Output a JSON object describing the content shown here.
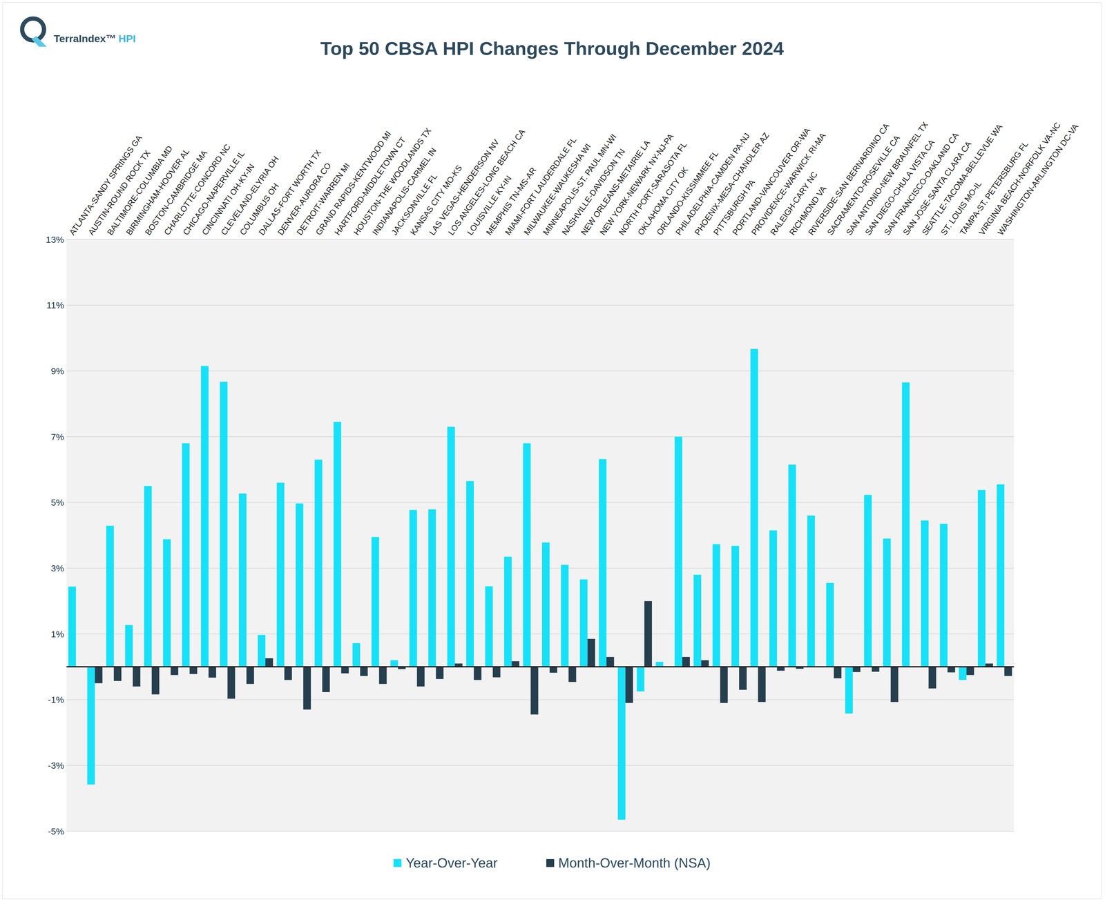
{
  "chart_data": {
    "type": "bar",
    "title": "Top 50 CBSA HPI Changes Through December 2024",
    "logo": [
      "TerraIndex™",
      "HPI"
    ],
    "categories": [
      "ATLANTA-SANDY SPRINGS GA",
      "AUSTIN-ROUND ROCK TX",
      "BALTIMORE-COLUMBIA MD",
      "BIRMINGHAM-HOOVER AL",
      "BOSTON-CAMBRIDGE MA",
      "CHARLOTTE-CONCORD NC",
      "CHICAGO-NAPERVILLE IL",
      "CINCINNATI OH-KY-IN",
      "CLEVELAND-ELYRIA OH",
      "COLUMBUS OH",
      "DALLAS-FORT WORTH TX",
      "DENVER-AURORA CO",
      "DETROIT-WARREN MI",
      "GRAND RAPIDS-KENTWOOD MI",
      "HARTFORD-MIDDLETOWN CT",
      "HOUSTON-THE WOODLANDS TX",
      "INDIANAPOLIS-CARMEL IN",
      "JACKSONVILLE FL",
      "KANSAS CITY MO-KS",
      "LAS VEGAS-HENDERSON NV",
      "LOS ANGELES-LONG BEACH CA",
      "LOUISVILLE KY-IN",
      "MEMPHIS TN-MS-AR",
      "MIAMI-FORT LAUDERDALE FL",
      "MILWAUKEE-WAUKESHA WI",
      "MINNEAPOLIS-ST. PAUL MN-WI",
      "NASHVILLE-DAVIDSON TN",
      "NEW ORLEANS-METAIRIE LA",
      "NEW YORK-NEWARK NY-NJ-PA",
      "NORTH PORT-SARASOTA FL",
      "OKLAHOMA CITY OK",
      "ORLANDO-KISSIMMEE FL",
      "PHILADELPHIA-CAMDEN PA-NJ",
      "PHOENIX-MESA-CHANDLER AZ",
      "PITTSBURGH PA",
      "PORTLAND-VANCOUVER OR-WA",
      "PROVIDENCE-WARWICK RI-MA",
      "RALEIGH-CARY NC",
      "RICHMOND VA",
      "RIVERSIDE-SAN BERNARDINO CA",
      "SACRAMENTO-ROSEVILLE CA",
      "SAN ANTONIO-NEW BRAUNFEL TX",
      "SAN DIEGO-CHULA VISTA CA",
      "SAN FRANCISCO-OAKLAND CA",
      "SAN JOSE-SANTA CLARA CA",
      "SEATTLE-TACOMA-BELLEVUE WA",
      "ST. LOUIS MO-IL",
      "TAMPA-ST. PETERSBURG FL",
      "VIRGINIA BEACH-NORFOLK VA-NC",
      "WASHINGTON-ARLINGTON DC-VA"
    ],
    "series": [
      {
        "name": "Year-Over-Year",
        "color": "#17E1F7",
        "values": [
          2.44,
          -3.58,
          4.29,
          1.27,
          5.5,
          3.88,
          6.8,
          9.15,
          8.67,
          5.27,
          0.97,
          5.6,
          4.97,
          6.3,
          7.45,
          0.72,
          3.95,
          0.2,
          4.77,
          4.79,
          7.3,
          5.65,
          2.45,
          3.35,
          6.8,
          3.78,
          3.1,
          2.66,
          6.32,
          -4.65,
          -0.75,
          0.15,
          7.0,
          2.8,
          3.73,
          3.68,
          9.67,
          4.15,
          6.15,
          4.6,
          2.55,
          -1.42,
          5.23,
          3.9,
          8.65,
          4.45,
          4.35,
          -0.4,
          5.38,
          5.55
        ]
      },
      {
        "name": "Month-Over-Month (NSA)",
        "color": "#263F4F",
        "values": [
          0,
          -0.5,
          -0.43,
          -0.6,
          -0.84,
          -0.25,
          -0.22,
          -0.33,
          -0.97,
          -0.52,
          0.26,
          -0.4,
          -1.3,
          -0.77,
          -0.2,
          -0.28,
          -0.52,
          -0.07,
          -0.6,
          -0.37,
          0.1,
          -0.4,
          -0.32,
          0.17,
          -1.45,
          -0.18,
          -0.46,
          0.85,
          0.3,
          -1.1,
          2.0,
          0,
          0.3,
          0.2,
          -1.1,
          -0.7,
          -1.07,
          -0.12,
          -0.06,
          0,
          -0.35,
          -0.16,
          -0.15,
          -1.07,
          0,
          -0.66,
          -0.17,
          -0.25,
          0.1,
          -0.28
        ]
      }
    ],
    "ylim": [
      -5,
      13
    ],
    "yticks": [
      {
        "value": -5,
        "label": "-5%"
      },
      {
        "value": -3,
        "label": "-3%"
      },
      {
        "value": -1,
        "label": "-1%"
      },
      {
        "value": 1,
        "label": "1%"
      },
      {
        "value": 3,
        "label": "3%"
      },
      {
        "value": 5,
        "label": "5%"
      },
      {
        "value": 7,
        "label": "7%"
      },
      {
        "value": 9,
        "label": "9%"
      },
      {
        "value": 11,
        "label": "11%"
      },
      {
        "value": 13,
        "label": "13%"
      }
    ],
    "grid": true,
    "legend": "bottom"
  }
}
